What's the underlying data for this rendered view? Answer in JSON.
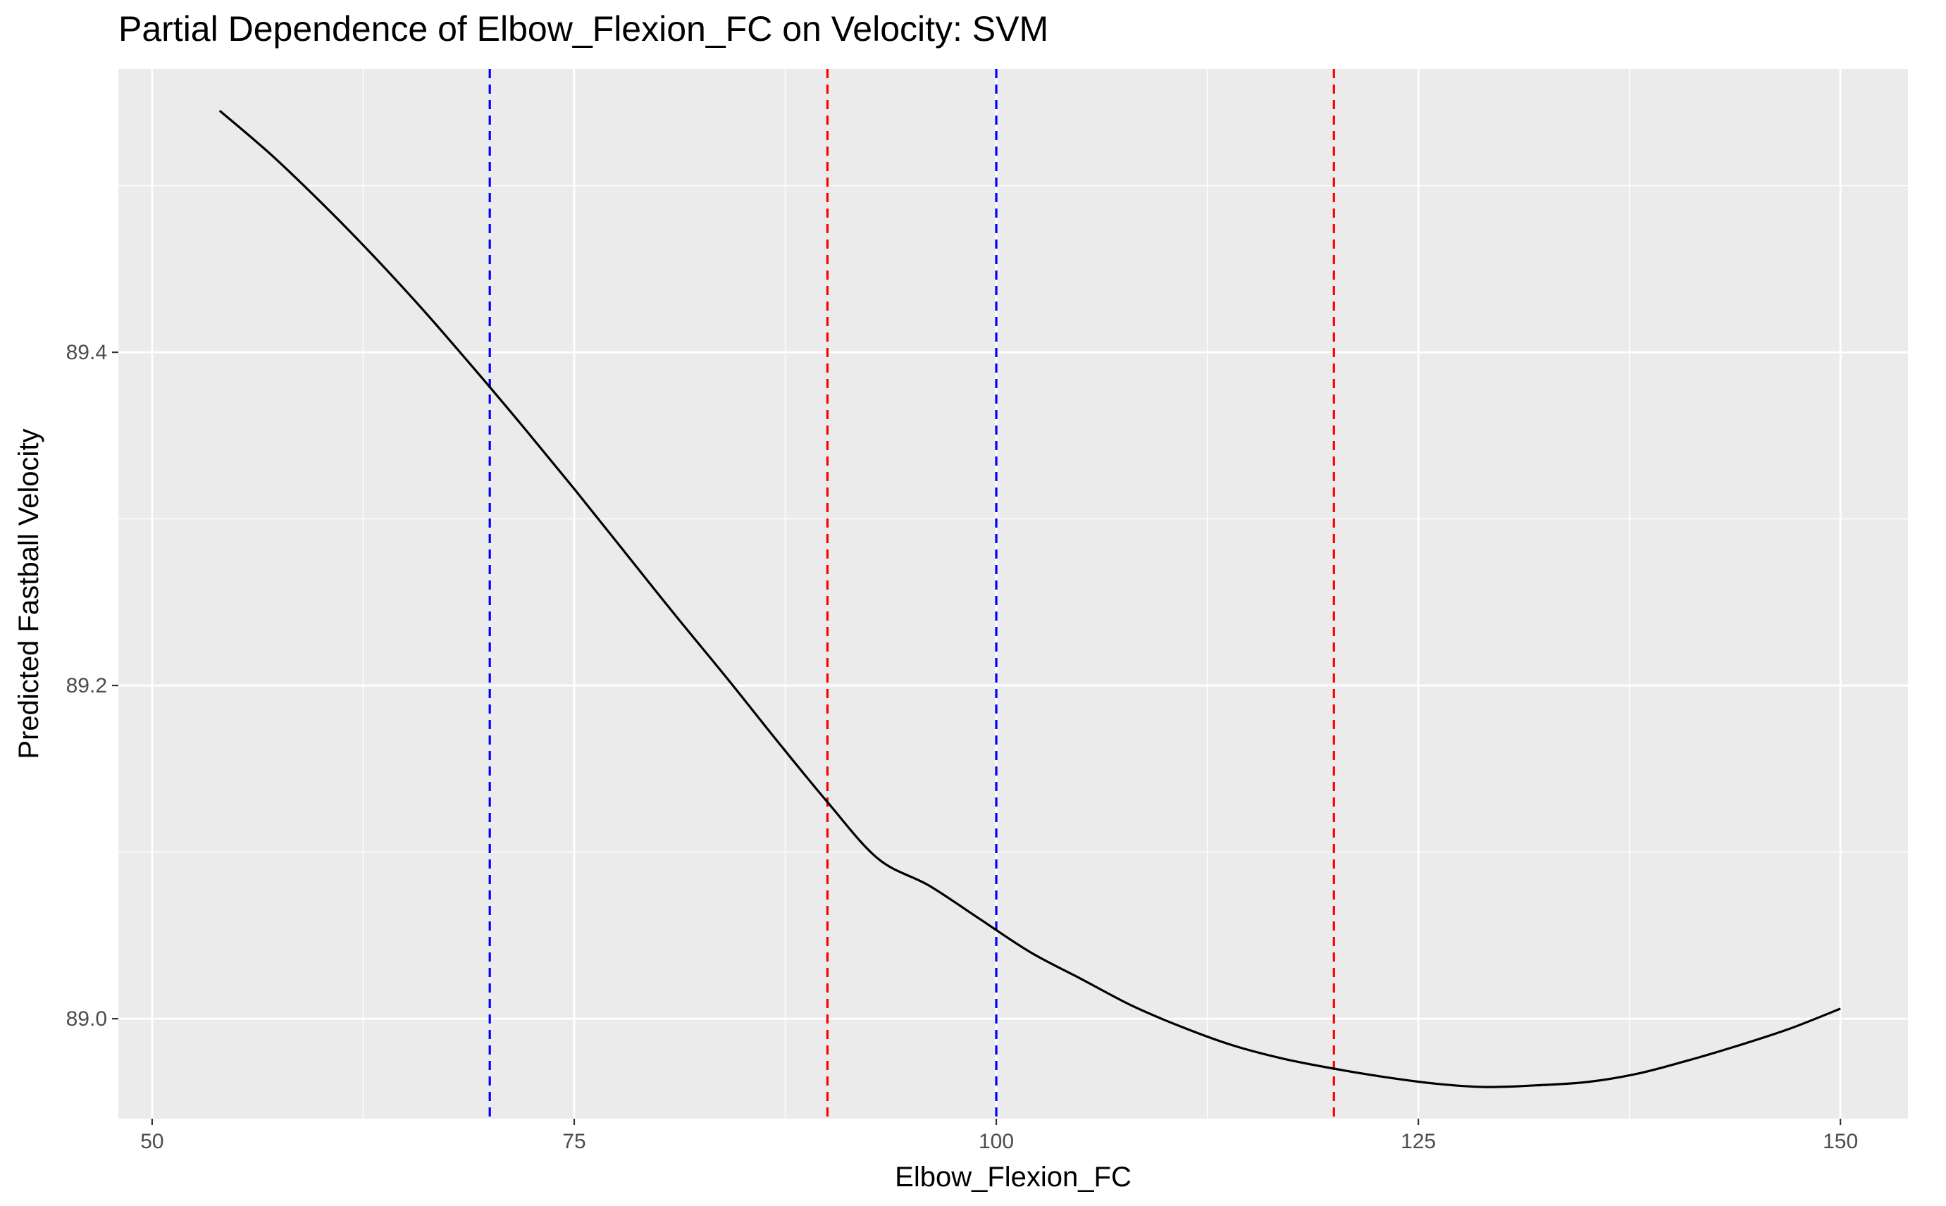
{
  "chart_data": {
    "type": "line",
    "title": "Partial Dependence of Elbow_Flexion_FC on Velocity: SVM",
    "xlabel": "Elbow_Flexion_FC",
    "ylabel": "Predicted Fastball Velocity",
    "xlim": [
      48,
      154
    ],
    "ylim": [
      88.94,
      89.57
    ],
    "x_ticks": [
      50,
      75,
      100,
      125,
      150
    ],
    "x_tick_labels": [
      "50",
      "75",
      "100",
      "125",
      "150"
    ],
    "y_ticks": [
      89.0,
      89.2,
      89.4
    ],
    "y_tick_labels": [
      "89.0",
      "89.2",
      "89.4"
    ],
    "grid": true,
    "background": "#ebebeb",
    "series": [
      {
        "color": "#000000",
        "x": [
          54,
          57,
          60,
          63,
          66,
          69,
          72,
          75,
          78,
          81,
          84,
          87,
          90,
          93,
          96,
          99,
          102,
          105,
          108,
          111,
          114,
          117,
          120,
          123,
          126,
          129,
          132,
          135,
          138,
          141,
          144,
          147,
          150
        ],
        "y": [
          89.545,
          89.519,
          89.49,
          89.459,
          89.426,
          89.391,
          89.355,
          89.318,
          89.28,
          89.242,
          89.205,
          89.167,
          89.13,
          89.096,
          89.08,
          89.06,
          89.04,
          89.024,
          89.008,
          88.995,
          88.984,
          88.976,
          88.97,
          88.965,
          88.961,
          88.959,
          88.96,
          88.962,
          88.967,
          88.975,
          88.984,
          88.994,
          89.006
        ]
      }
    ],
    "vlines": [
      {
        "x": 70,
        "color": "#0000ff",
        "style": "dashed"
      },
      {
        "x": 90,
        "color": "#ff0000",
        "style": "dashed"
      },
      {
        "x": 100,
        "color": "#0000ff",
        "style": "dashed"
      },
      {
        "x": 120,
        "color": "#ff0000",
        "style": "dashed"
      }
    ]
  }
}
